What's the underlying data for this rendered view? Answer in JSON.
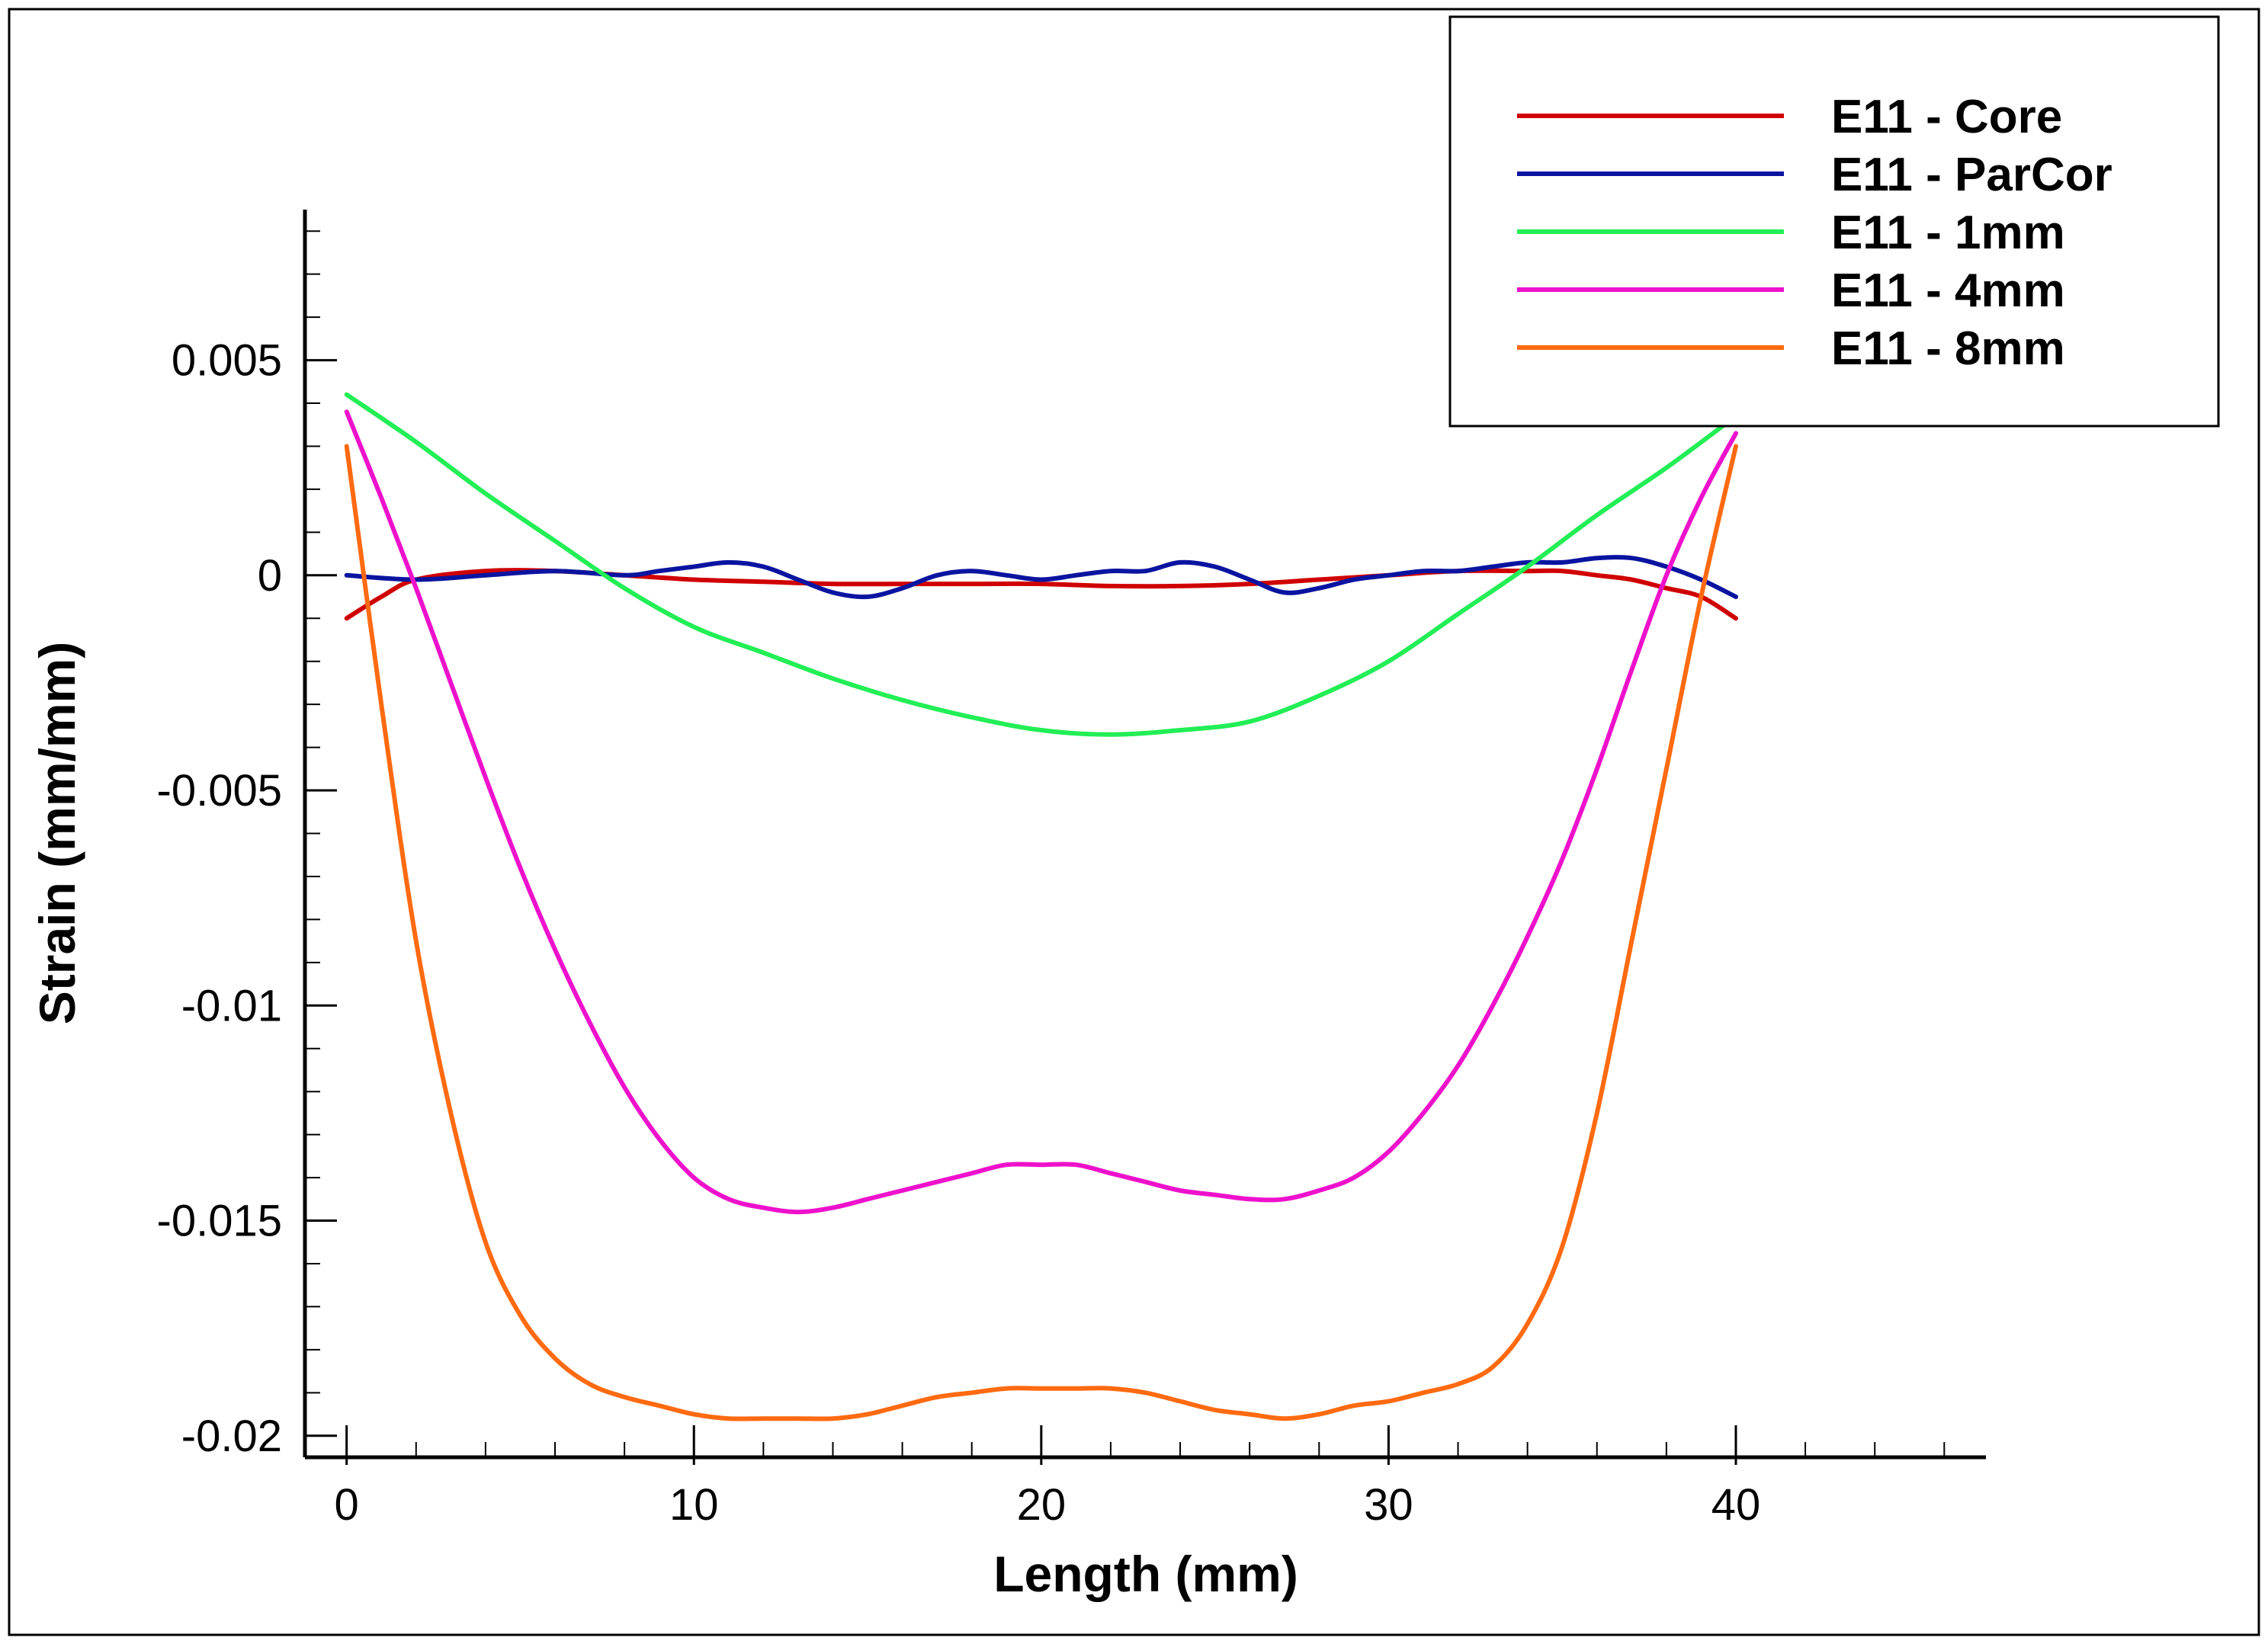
{
  "chart_data": {
    "type": "line",
    "title": "",
    "xlabel": "Length (mm)",
    "ylabel": "Strain (mm/mm)",
    "xlim": [
      -1.2,
      47.2
    ],
    "ylim": [
      -0.0205,
      0.0085
    ],
    "x_ticks": [
      {
        "value": 0,
        "label": "0"
      },
      {
        "value": 10,
        "label": "10"
      },
      {
        "value": 20,
        "label": "20"
      },
      {
        "value": 30,
        "label": "30"
      },
      {
        "value": 40,
        "label": "40"
      }
    ],
    "x_minor_step": 2,
    "y_ticks": [
      {
        "value": 0.005,
        "label": "0.005"
      },
      {
        "value": 0,
        "label": "0"
      },
      {
        "value": -0.005,
        "label": "-0.005"
      },
      {
        "value": -0.01,
        "label": "-0.01"
      },
      {
        "value": -0.015,
        "label": "-0.015"
      },
      {
        "value": -0.02,
        "label": "-0.02"
      }
    ],
    "y_minor_step": 0.001,
    "legend_position": "top-right",
    "series": [
      {
        "name": "E11 - Core",
        "color": "#d00000",
        "x": [
          0,
          1,
          2,
          4,
          6,
          8,
          10,
          12,
          14,
          16,
          18,
          20,
          22,
          24,
          26,
          28,
          30,
          32,
          34,
          35,
          36,
          37,
          38,
          39,
          40
        ],
        "y": [
          -0.001,
          -0.0005,
          -0.0001,
          0.0001,
          0.0001,
          0.0,
          -0.0001,
          -0.00015,
          -0.0002,
          -0.0002,
          -0.0002,
          -0.0002,
          -0.00025,
          -0.00025,
          -0.0002,
          -0.0001,
          0.0,
          0.0001,
          0.0001,
          0.0001,
          0.0,
          -0.0001,
          -0.0003,
          -0.0005,
          -0.001
        ]
      },
      {
        "name": "E11 - ParCor",
        "color": "#0a14a0",
        "x": [
          0,
          2,
          4,
          6,
          8,
          9,
          10,
          11,
          12,
          13,
          14,
          15,
          16,
          17,
          18,
          19,
          20,
          21,
          22,
          23,
          24,
          25,
          26,
          27,
          28,
          29,
          30,
          31,
          32,
          33,
          34,
          35,
          36,
          37,
          38,
          39,
          40
        ],
        "y": [
          0.0,
          -0.0001,
          0.0,
          0.0001,
          0.0,
          0.0001,
          0.0002,
          0.0003,
          0.0002,
          -0.0001,
          -0.0004,
          -0.0005,
          -0.0003,
          0.0,
          0.0001,
          0.0,
          -0.0001,
          0.0,
          0.0001,
          0.0001,
          0.0003,
          0.0002,
          -0.0001,
          -0.0004,
          -0.0003,
          -0.0001,
          0.0,
          0.0001,
          0.0001,
          0.0002,
          0.0003,
          0.0003,
          0.0004,
          0.0004,
          0.0002,
          -0.0001,
          -0.0005
        ]
      },
      {
        "name": "E11 - 1mm",
        "color": "#22ee55",
        "x": [
          0,
          2,
          4,
          6,
          8,
          10,
          12,
          14,
          16,
          18,
          20,
          22,
          24,
          26,
          28,
          30,
          32,
          34,
          36,
          38,
          40
        ],
        "y": [
          0.0042,
          0.0031,
          0.0019,
          0.0008,
          -0.0003,
          -0.0012,
          -0.0018,
          -0.0024,
          -0.0029,
          -0.0033,
          -0.0036,
          -0.0037,
          -0.0036,
          -0.0034,
          -0.0028,
          -0.002,
          -0.0009,
          0.0002,
          0.0014,
          0.0025,
          0.0037
        ]
      },
      {
        "name": "E11 - 4mm",
        "color": "#ee11cc",
        "x": [
          0,
          1,
          2,
          3,
          4,
          5,
          6,
          7,
          8,
          9,
          10,
          11,
          12,
          13,
          14,
          15,
          16,
          17,
          18,
          19,
          20,
          21,
          22,
          23,
          24,
          25,
          26,
          27,
          28,
          29,
          30,
          31,
          32,
          33,
          34,
          35,
          36,
          37,
          38,
          39,
          40
        ],
        "y": [
          0.0038,
          0.0018,
          -0.0003,
          -0.0025,
          -0.0047,
          -0.0068,
          -0.0087,
          -0.0104,
          -0.0119,
          -0.0131,
          -0.014,
          -0.0145,
          -0.0147,
          -0.0148,
          -0.0147,
          -0.0145,
          -0.0143,
          -0.0141,
          -0.0139,
          -0.0137,
          -0.0137,
          -0.0137,
          -0.0139,
          -0.0141,
          -0.0143,
          -0.0144,
          -0.0145,
          -0.0145,
          -0.0143,
          -0.014,
          -0.0134,
          -0.0125,
          -0.0114,
          -0.01,
          -0.0084,
          -0.0066,
          -0.0045,
          -0.0022,
          0.0,
          0.0018,
          0.0033
        ]
      },
      {
        "name": "E11 - 8mm",
        "color": "#ff6a10",
        "x": [
          0,
          1,
          2,
          3,
          4,
          5,
          6,
          7,
          8,
          9,
          10,
          11,
          12,
          13,
          14,
          15,
          16,
          17,
          18,
          19,
          20,
          21,
          22,
          23,
          24,
          25,
          26,
          27,
          28,
          29,
          30,
          31,
          32,
          33,
          34,
          35,
          36,
          37,
          38,
          39,
          40
        ],
        "y": [
          0.003,
          -0.003,
          -0.0085,
          -0.0125,
          -0.0155,
          -0.0172,
          -0.0182,
          -0.0188,
          -0.0191,
          -0.0193,
          -0.0195,
          -0.0196,
          -0.0196,
          -0.0196,
          -0.0196,
          -0.0195,
          -0.0193,
          -0.0191,
          -0.019,
          -0.0189,
          -0.0189,
          -0.0189,
          -0.0189,
          -0.019,
          -0.0192,
          -0.0194,
          -0.0195,
          -0.0196,
          -0.0195,
          -0.0193,
          -0.0192,
          -0.019,
          -0.0188,
          -0.0184,
          -0.0174,
          -0.0156,
          -0.0125,
          -0.0085,
          -0.0045,
          -0.0005,
          0.003
        ]
      }
    ]
  }
}
